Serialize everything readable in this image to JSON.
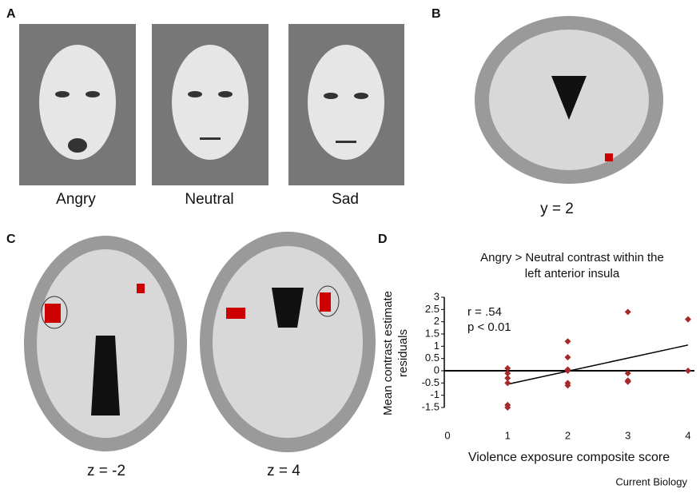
{
  "panels": {
    "a": {
      "label": "A",
      "captions": [
        "Angry",
        "Neutral",
        "Sad"
      ]
    },
    "b": {
      "label": "B",
      "caption": "y = 2"
    },
    "c": {
      "label": "C",
      "captions": [
        "z = -2",
        "z = 4"
      ]
    },
    "d": {
      "label": "D"
    },
    "credit": "Current Biology"
  },
  "chart_data": {
    "type": "scatter",
    "title": [
      "Angry > Neutral contrast within the",
      "left anterior insula"
    ],
    "y_label": [
      "Mean contrast estimate",
      "residuals"
    ],
    "x_label": "Violence exposure composite score",
    "annotations": [
      "r = .54",
      "p < 0.01"
    ],
    "x": [
      1,
      1,
      1,
      1,
      1,
      1,
      2,
      2,
      2,
      2,
      2,
      2,
      3,
      3,
      3,
      3,
      4,
      4
    ],
    "values": [
      0.1,
      -0.1,
      -0.3,
      -0.5,
      -1.4,
      -1.5,
      1.2,
      0.55,
      0.05,
      0.0,
      -0.5,
      -0.6,
      2.4,
      -0.1,
      -0.4,
      -0.45,
      2.1,
      0.0
    ],
    "color": "#a52a2a",
    "trend_line": {
      "x": [
        1,
        4
      ],
      "values": [
        -0.55,
        1.05
      ]
    },
    "reference_line": 0,
    "xlim": [
      0,
      4
    ],
    "xticks": [
      0,
      1,
      2,
      3,
      4
    ],
    "ylim": [
      -1.5,
      3
    ],
    "yticks": [
      3,
      2.5,
      2,
      1.5,
      1,
      0.5,
      0,
      -0.5,
      -1,
      -1.5
    ]
  }
}
